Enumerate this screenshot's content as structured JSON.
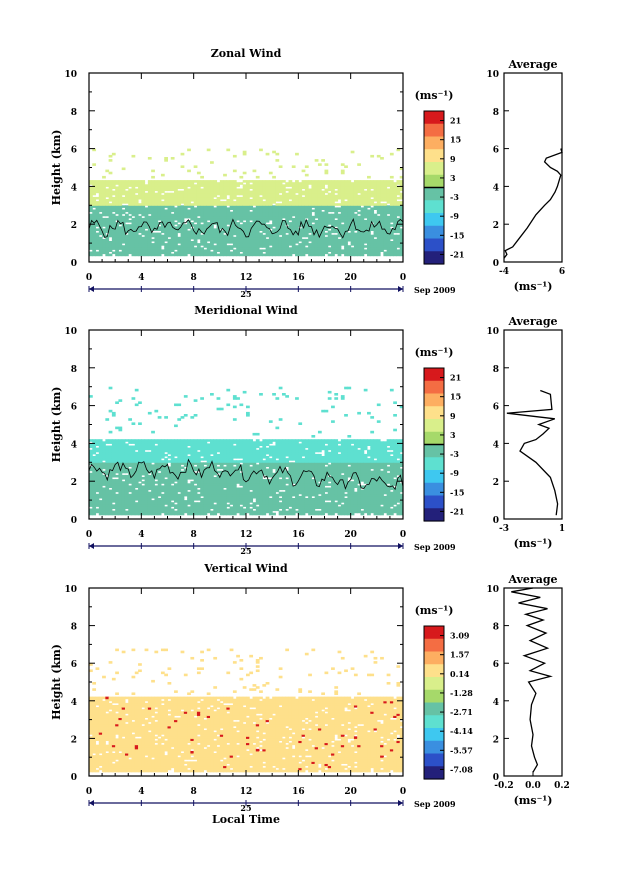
{
  "chart_data": [
    {
      "type": "heatmap",
      "title": "Zonal Wind",
      "ylabel": "Height (km)",
      "ylim": [
        0,
        10
      ],
      "xlim": [
        0,
        24
      ],
      "x_ticks": [
        "0",
        "4",
        "8",
        "12",
        "16",
        "20",
        "0"
      ],
      "y_ticks": [
        "0",
        "2",
        "4",
        "6",
        "8",
        "10"
      ],
      "date_day": "25",
      "date_label": "Sep 2009",
      "colorbar": {
        "unit": "(ms⁻¹)",
        "ticks": [
          "21",
          "15",
          "9",
          "3",
          "-3",
          "-9",
          "-15",
          "-21"
        ],
        "zero_line": true
      },
      "field": {
        "upper_layer": {
          "height_km": [
            3.0,
            4.3
          ],
          "value_ms": 6
        },
        "middle_layer": {
          "height_km": [
            1.8,
            3.0
          ],
          "value_ms": 0
        },
        "lower_layer": {
          "height_km": [
            0.3,
            1.8
          ],
          "value_ms": -3
        },
        "sparse_upper_km": [
          4.5,
          6.0
        ]
      },
      "profile": {
        "title": "Average",
        "xlabel": "(ms⁻¹)",
        "x_ticks": [
          "-4",
          "6"
        ],
        "xlim": [
          -4,
          6
        ],
        "points": [
          [
            -4.0,
            0.2
          ],
          [
            -3.5,
            0.4
          ],
          [
            -3.8,
            0.6
          ],
          [
            -2.5,
            0.8
          ],
          [
            -1.5,
            1.2
          ],
          [
            0.0,
            1.8
          ],
          [
            1.5,
            2.5
          ],
          [
            3.0,
            3.0
          ],
          [
            4.0,
            3.3
          ],
          [
            4.8,
            3.7
          ],
          [
            5.2,
            4.0
          ],
          [
            5.5,
            4.3
          ],
          [
            5.8,
            4.6
          ],
          [
            5.2,
            4.8
          ],
          [
            4.0,
            5.0
          ],
          [
            3.0,
            5.3
          ],
          [
            3.3,
            5.5
          ],
          [
            6.0,
            5.8
          ],
          [
            5.8,
            6.0
          ]
        ]
      }
    },
    {
      "type": "heatmap",
      "title": "Meridional Wind",
      "ylabel": "Height (km)",
      "ylim": [
        0,
        10
      ],
      "xlim": [
        0,
        24
      ],
      "x_ticks": [
        "0",
        "4",
        "8",
        "12",
        "16",
        "20",
        "0"
      ],
      "y_ticks": [
        "0",
        "2",
        "4",
        "6",
        "8",
        "10"
      ],
      "date_day": "25",
      "date_label": "Sep 2009",
      "colorbar": {
        "unit": "(ms⁻¹)",
        "ticks": [
          "21",
          "15",
          "9",
          "3",
          "-3",
          "-9",
          "-15",
          "-21"
        ],
        "zero_line": true
      },
      "field": {
        "upper_layer": {
          "height_km": [
            3.0,
            4.2
          ],
          "value_ms": -5
        },
        "lower_layer": {
          "height_km": [
            0.2,
            3.0
          ],
          "value_ms": 0
        },
        "sparse_upper_km": [
          4.3,
          7.0
        ]
      },
      "profile": {
        "title": "Average",
        "xlabel": "(ms⁻¹)",
        "x_ticks": [
          "-3",
          "1"
        ],
        "xlim": [
          -3,
          1
        ],
        "points": [
          [
            0.6,
            0.2
          ],
          [
            0.7,
            0.8
          ],
          [
            0.5,
            1.5
          ],
          [
            0.2,
            2.2
          ],
          [
            -0.8,
            3.0
          ],
          [
            -1.9,
            3.6
          ],
          [
            -1.6,
            4.0
          ],
          [
            -0.8,
            4.2
          ],
          [
            -0.3,
            4.5
          ],
          [
            0.1,
            4.8
          ],
          [
            -0.6,
            5.0
          ],
          [
            0.5,
            5.3
          ],
          [
            -2.8,
            5.6
          ],
          [
            0.3,
            5.8
          ],
          [
            0.2,
            6.6
          ],
          [
            -0.5,
            6.8
          ]
        ]
      }
    },
    {
      "type": "heatmap",
      "title": "Vertical Wind",
      "ylabel": "Height (km)",
      "xlabel": "Local Time",
      "ylim": [
        0,
        10
      ],
      "xlim": [
        0,
        24
      ],
      "x_ticks": [
        "0",
        "4",
        "8",
        "12",
        "16",
        "20",
        "0"
      ],
      "y_ticks": [
        "0",
        "2",
        "4",
        "6",
        "8",
        "10"
      ],
      "date_day": "25",
      "date_label": "Sep 2009",
      "colorbar": {
        "unit": "(ms⁻¹)",
        "ticks": [
          "3.09",
          "1.57",
          "0.14",
          "-1.28",
          "-2.71",
          "-4.14",
          "-5.57",
          "-7.08"
        ],
        "zero_line": false
      },
      "field": {
        "main_layer": {
          "height_km": [
            0.2,
            4.2
          ],
          "value_ms": 0.5
        },
        "sparse_upper_km": [
          4.3,
          6.8
        ]
      },
      "profile": {
        "title": "Average",
        "xlabel": "(ms⁻¹)",
        "x_ticks": [
          "-0.2",
          "0.0",
          "0.2"
        ],
        "xlim": [
          -0.2,
          0.2
        ],
        "points": [
          [
            0.0,
            0.2
          ],
          [
            0.03,
            0.6
          ],
          [
            0.01,
            1.0
          ],
          [
            -0.01,
            1.6
          ],
          [
            0.0,
            2.2
          ],
          [
            -0.02,
            3.0
          ],
          [
            -0.01,
            3.8
          ],
          [
            0.02,
            4.4
          ],
          [
            -0.03,
            5.0
          ],
          [
            0.12,
            5.3
          ],
          [
            -0.02,
            5.6
          ],
          [
            0.08,
            6.0
          ],
          [
            -0.06,
            6.4
          ],
          [
            0.1,
            6.8
          ],
          [
            -0.02,
            7.2
          ],
          [
            0.09,
            7.6
          ],
          [
            -0.04,
            8.0
          ],
          [
            0.07,
            8.3
          ],
          [
            -0.05,
            8.6
          ],
          [
            0.1,
            8.9
          ],
          [
            -0.1,
            9.2
          ],
          [
            0.05,
            9.5
          ],
          [
            -0.15,
            9.8
          ],
          [
            0.0,
            10.0
          ]
        ]
      }
    }
  ]
}
